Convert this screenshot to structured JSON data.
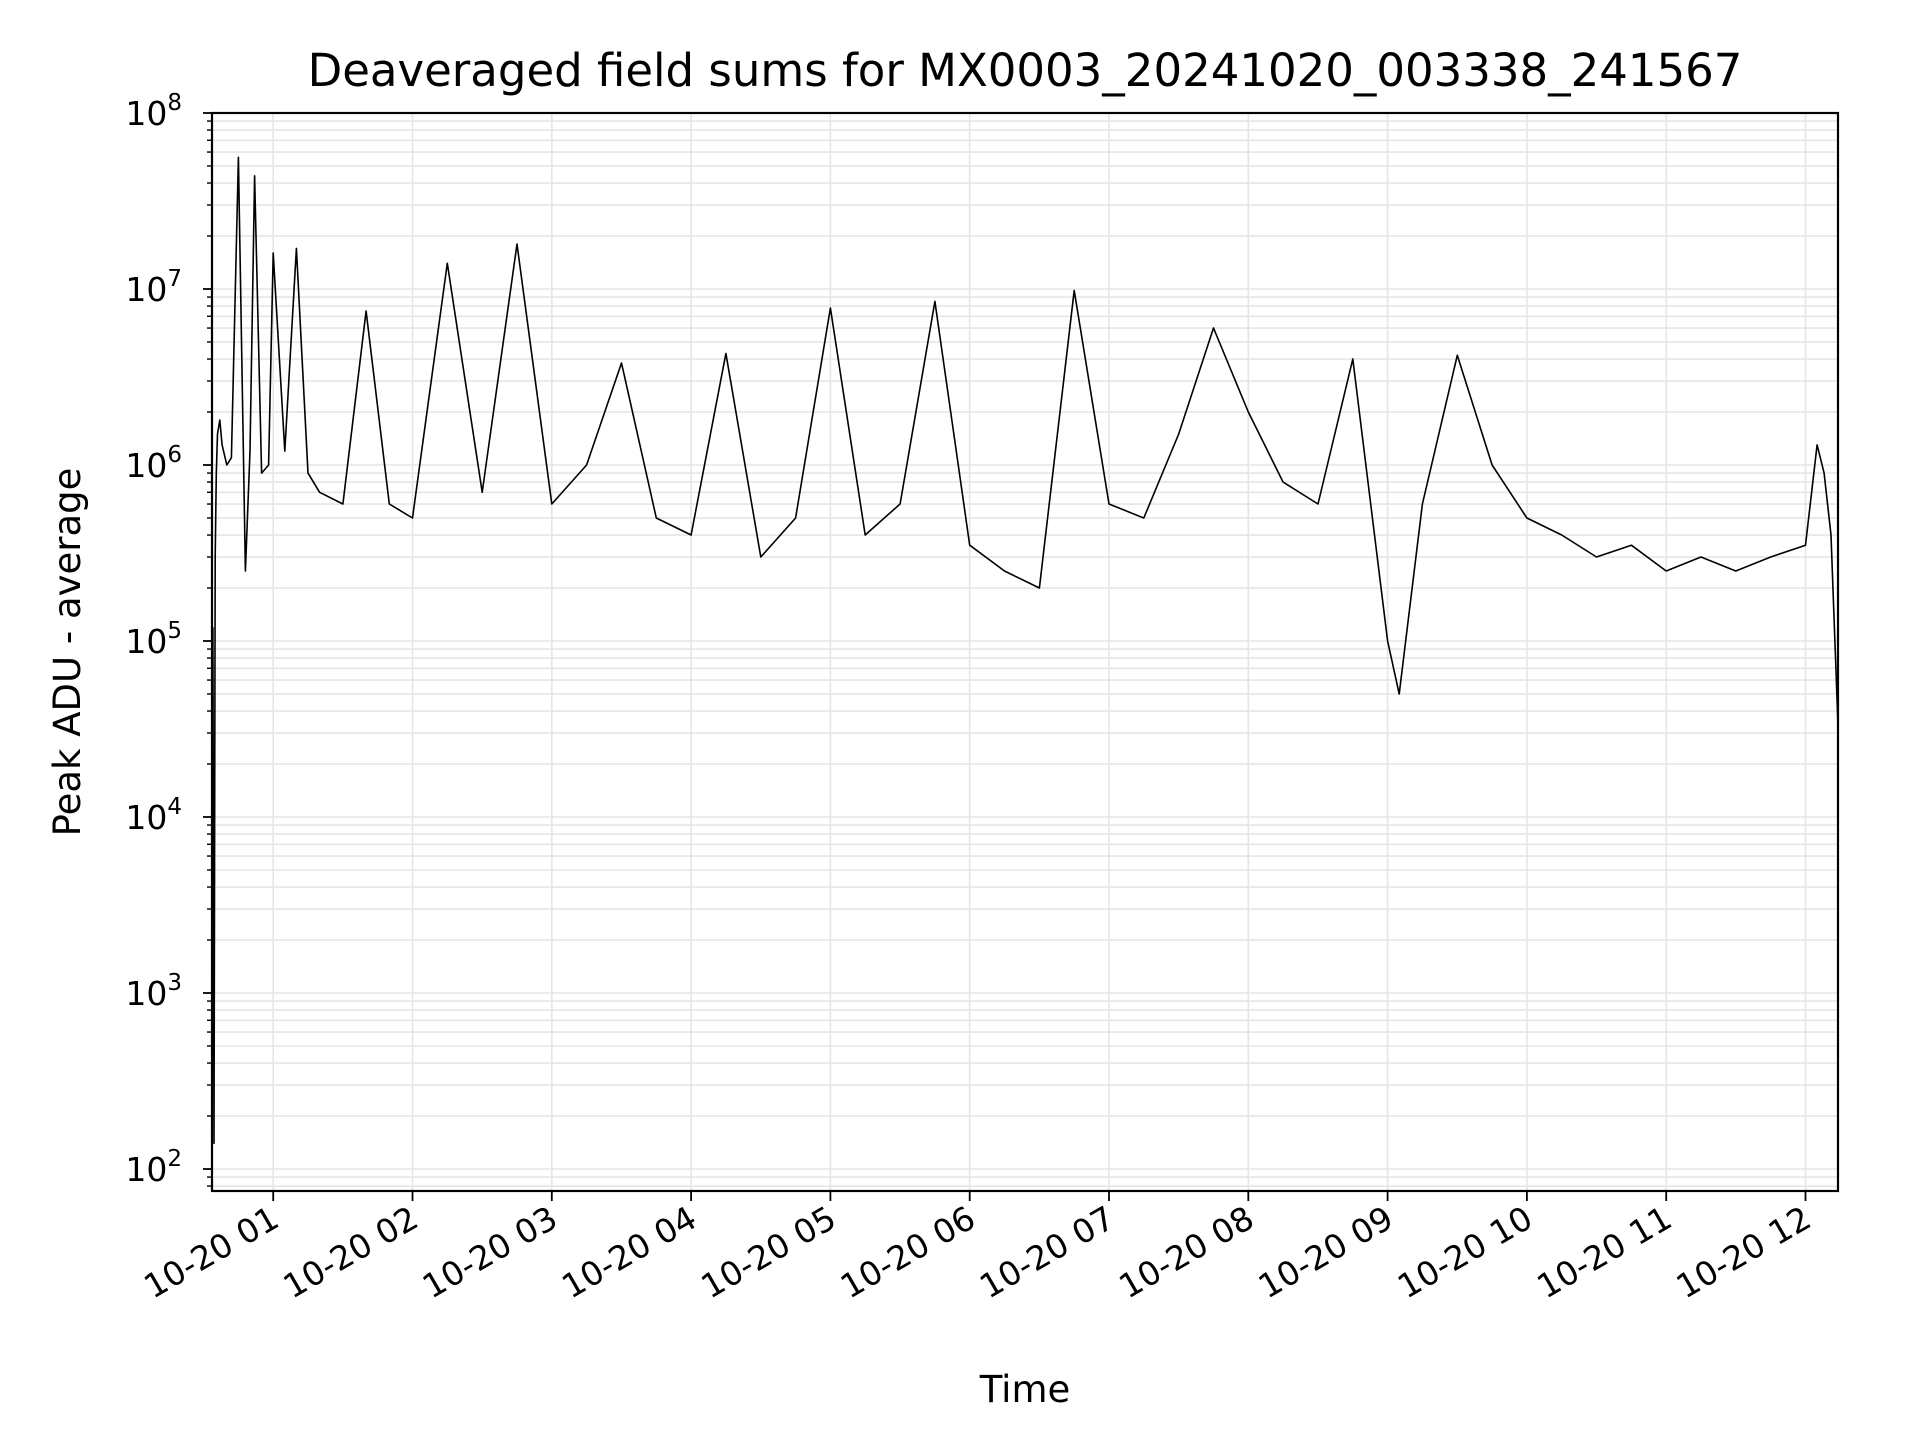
{
  "chart_data": {
    "type": "line",
    "title": "Deaveraged field sums for MX0003_20241020_003338_241567",
    "xlabel": "Time",
    "ylabel": "Peak ADU - average",
    "yscale": "log",
    "ylim": [
      75,
      100000000
    ],
    "xlim": [
      "2024-10-20T00:33:38",
      "2024-10-20T12:14:00"
    ],
    "grid": true,
    "line_color": "#000000",
    "grid_color": "#e5e5e5",
    "x_ticks": [
      "10-20 01",
      "10-20 02",
      "10-20 03",
      "10-20 04",
      "10-20 05",
      "10-20 06",
      "10-20 07",
      "10-20 08",
      "10-20 09",
      "10-20 10",
      "10-20 11",
      "10-20 12"
    ],
    "y_ticks": [
      {
        "value": 100,
        "base": "10",
        "exp": "2"
      },
      {
        "value": 1000,
        "base": "10",
        "exp": "3"
      },
      {
        "value": 10000,
        "base": "10",
        "exp": "4"
      },
      {
        "value": 100000,
        "base": "10",
        "exp": "5"
      },
      {
        "value": 1000000,
        "base": "10",
        "exp": "6"
      },
      {
        "value": 10000000,
        "base": "10",
        "exp": "7"
      },
      {
        "value": 100000000,
        "base": "10",
        "exp": "8"
      }
    ],
    "series": [
      {
        "x": [
          "2024-10-20T00:34:00",
          "2024-10-20T00:34:30",
          "2024-10-20T00:35:00",
          "2024-10-20T00:35:30",
          "2024-10-20T00:36:00",
          "2024-10-20T00:37:00",
          "2024-10-20T00:38:00",
          "2024-10-20T00:40:00",
          "2024-10-20T00:42:00",
          "2024-10-20T00:45:00",
          "2024-10-20T00:48:00",
          "2024-10-20T00:50:00",
          "2024-10-20T00:52:00",
          "2024-10-20T00:55:00",
          "2024-10-20T00:58:00",
          "2024-10-20T01:00:00",
          "2024-10-20T01:05:00",
          "2024-10-20T01:10:00",
          "2024-10-20T01:15:00",
          "2024-10-20T01:20:00",
          "2024-10-20T01:30:00",
          "2024-10-20T01:40:00",
          "2024-10-20T01:50:00",
          "2024-10-20T02:00:00",
          "2024-10-20T02:15:00",
          "2024-10-20T02:30:00",
          "2024-10-20T02:45:00",
          "2024-10-20T03:00:00",
          "2024-10-20T03:15:00",
          "2024-10-20T03:30:00",
          "2024-10-20T03:45:00",
          "2024-10-20T04:00:00",
          "2024-10-20T04:15:00",
          "2024-10-20T04:30:00",
          "2024-10-20T04:45:00",
          "2024-10-20T05:00:00",
          "2024-10-20T05:15:00",
          "2024-10-20T05:30:00",
          "2024-10-20T05:45:00",
          "2024-10-20T06:00:00",
          "2024-10-20T06:15:00",
          "2024-10-20T06:30:00",
          "2024-10-20T06:45:00",
          "2024-10-20T07:00:00",
          "2024-10-20T07:15:00",
          "2024-10-20T07:30:00",
          "2024-10-20T07:45:00",
          "2024-10-20T08:00:00",
          "2024-10-20T08:15:00",
          "2024-10-20T08:30:00",
          "2024-10-20T08:45:00",
          "2024-10-20T09:00:00",
          "2024-10-20T09:05:00",
          "2024-10-20T09:15:00",
          "2024-10-20T09:30:00",
          "2024-10-20T09:45:00",
          "2024-10-20T10:00:00",
          "2024-10-20T10:15:00",
          "2024-10-20T10:30:00",
          "2024-10-20T10:45:00",
          "2024-10-20T11:00:00",
          "2024-10-20T11:15:00",
          "2024-10-20T11:30:00",
          "2024-10-20T11:45:00",
          "2024-10-20T12:00:00",
          "2024-10-20T12:05:00",
          "2024-10-20T12:08:00",
          "2024-10-20T12:11:00",
          "2024-10-20T12:14:00"
        ],
        "y": [
          120000,
          140,
          300000,
          900000,
          1500000,
          1800000,
          1300000,
          1000000,
          1100000,
          56000000,
          250000,
          1200000,
          44000000,
          900000,
          1000000,
          16000000,
          1200000,
          17000000,
          900000,
          700000,
          600000,
          7500000,
          600000,
          500000,
          14000000,
          700000,
          18000000,
          600000,
          1000000,
          3800000,
          500000,
          400000,
          4300000,
          300000,
          500000,
          7800000,
          400000,
          600000,
          8500000,
          350000,
          250000,
          200000,
          9800000,
          600000,
          500000,
          1500000,
          6000000,
          2000000,
          800000,
          600000,
          4000000,
          100000,
          50000,
          600000,
          4200000,
          1000000,
          500000,
          400000,
          300000,
          350000,
          250000,
          300000,
          250000,
          300000,
          350000,
          1300000,
          900000,
          400000,
          33000
        ]
      }
    ]
  }
}
